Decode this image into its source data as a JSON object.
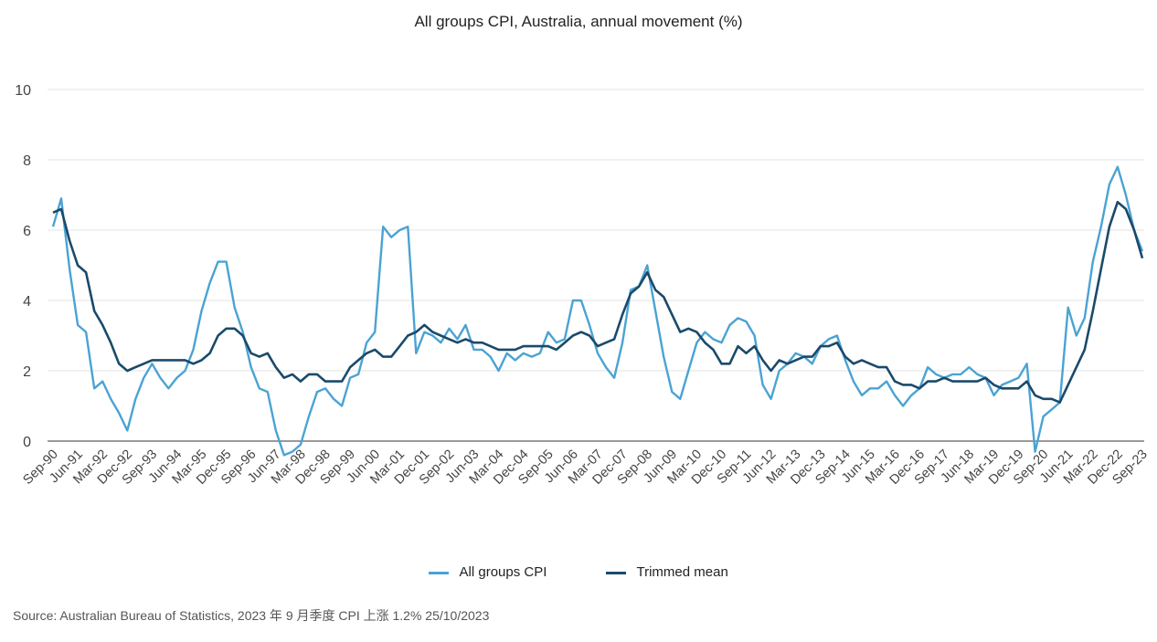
{
  "source": "Source: Australian Bureau of Statistics, 2023 年 9 月季度 CPI 上涨 1.2% 25/10/2023",
  "chart_data": {
    "type": "line",
    "title": "All groups CPI, Australia, annual movement (%)",
    "ylim": [
      -1,
      10
    ],
    "yticks": [
      0,
      2,
      4,
      6,
      8,
      10
    ],
    "grid": true,
    "legend_position": "bottom",
    "x_tick_labels": [
      "Sep-90",
      "Jun-91",
      "Mar-92",
      "Dec-92",
      "Sep-93",
      "Jun-94",
      "Mar-95",
      "Dec-95",
      "Sep-96",
      "Jun-97",
      "Mar-98",
      "Dec-98",
      "Sep-99",
      "Jun-00",
      "Mar-01",
      "Dec-01",
      "Sep-02",
      "Jun-03",
      "Mar-04",
      "Dec-04",
      "Sep-05",
      "Jun-06",
      "Mar-07",
      "Dec-07",
      "Sep-08",
      "Jun-09",
      "Mar-10",
      "Dec-10",
      "Sep-11",
      "Jun-12",
      "Mar-13",
      "Dec-13",
      "Sep-14",
      "Jun-15",
      "Mar-16",
      "Dec-16",
      "Sep-17",
      "Jun-18",
      "Mar-19",
      "Dec-19",
      "Sep-20",
      "Jun-21",
      "Mar-22",
      "Dec-22",
      "Sep-23"
    ],
    "colors": {
      "cpi": "#4aa3d3",
      "trimmed": "#1a4a6b",
      "zero_line": "#9a9a9a",
      "grid": "#e3e3e3"
    },
    "series": [
      {
        "name": "All groups CPI",
        "values": [
          6.1,
          6.9,
          4.9,
          3.3,
          3.1,
          1.5,
          1.7,
          1.2,
          0.8,
          0.3,
          1.2,
          1.8,
          2.2,
          1.8,
          1.5,
          1.8,
          2.0,
          2.6,
          3.7,
          4.5,
          5.1,
          5.1,
          3.8,
          3.1,
          2.1,
          1.5,
          1.4,
          0.3,
          -0.4,
          -0.3,
          -0.1,
          0.7,
          1.4,
          1.5,
          1.2,
          1.0,
          1.8,
          1.9,
          2.8,
          3.1,
          6.1,
          5.8,
          6.0,
          6.1,
          2.5,
          3.1,
          3.0,
          2.8,
          3.2,
          2.9,
          3.3,
          2.6,
          2.6,
          2.4,
          2.0,
          2.5,
          2.3,
          2.5,
          2.4,
          2.5,
          3.1,
          2.8,
          2.9,
          4.0,
          4.0,
          3.3,
          2.5,
          2.1,
          1.8,
          2.8,
          4.3,
          4.4,
          5.0,
          3.7,
          2.4,
          1.4,
          1.2,
          2.0,
          2.8,
          3.1,
          2.9,
          2.8,
          3.3,
          3.5,
          3.4,
          3.0,
          1.6,
          1.2,
          2.0,
          2.2,
          2.5,
          2.4,
          2.2,
          2.7,
          2.9,
          3.0,
          2.3,
          1.7,
          1.3,
          1.5,
          1.5,
          1.7,
          1.3,
          1.0,
          1.3,
          1.5,
          2.1,
          1.9,
          1.8,
          1.9,
          1.9,
          2.1,
          1.9,
          1.8,
          1.3,
          1.6,
          1.7,
          1.8,
          2.2,
          -0.3,
          0.7,
          0.9,
          1.1,
          3.8,
          3.0,
          3.5,
          5.1,
          6.1,
          7.3,
          7.8,
          7.0,
          6.0,
          5.4
        ]
      },
      {
        "name": "Trimmed mean",
        "values": [
          6.5,
          6.6,
          5.7,
          5.0,
          4.8,
          3.7,
          3.3,
          2.8,
          2.2,
          2.0,
          2.1,
          2.2,
          2.3,
          2.3,
          2.3,
          2.3,
          2.3,
          2.2,
          2.3,
          2.5,
          3.0,
          3.2,
          3.2,
          3.0,
          2.5,
          2.4,
          2.5,
          2.1,
          1.8,
          1.9,
          1.7,
          1.9,
          1.9,
          1.7,
          1.7,
          1.7,
          2.1,
          2.3,
          2.5,
          2.6,
          2.4,
          2.4,
          2.7,
          3.0,
          3.1,
          3.3,
          3.1,
          3.0,
          2.9,
          2.8,
          2.9,
          2.8,
          2.8,
          2.7,
          2.6,
          2.6,
          2.6,
          2.7,
          2.7,
          2.7,
          2.7,
          2.6,
          2.8,
          3.0,
          3.1,
          3.0,
          2.7,
          2.8,
          2.9,
          3.6,
          4.2,
          4.4,
          4.8,
          4.3,
          4.1,
          3.6,
          3.1,
          3.2,
          3.1,
          2.8,
          2.6,
          2.2,
          2.2,
          2.7,
          2.5,
          2.7,
          2.3,
          2.0,
          2.3,
          2.2,
          2.3,
          2.4,
          2.4,
          2.7,
          2.7,
          2.8,
          2.4,
          2.2,
          2.3,
          2.2,
          2.1,
          2.1,
          1.7,
          1.6,
          1.6,
          1.5,
          1.7,
          1.7,
          1.8,
          1.7,
          1.7,
          1.7,
          1.7,
          1.8,
          1.6,
          1.5,
          1.5,
          1.5,
          1.7,
          1.3,
          1.2,
          1.2,
          1.1,
          1.6,
          2.1,
          2.6,
          3.7,
          4.9,
          6.1,
          6.8,
          6.6,
          6.0,
          5.2
        ]
      }
    ]
  }
}
